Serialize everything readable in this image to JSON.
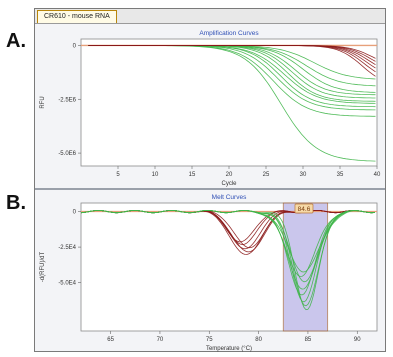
{
  "labels": {
    "panel_a": "A.",
    "panel_b": "B."
  },
  "window": {
    "tab_label": "CR610 - mouse RNA"
  },
  "chart_data": [
    {
      "type": "line",
      "title": "Amplification Curves",
      "xlabel": "Cycle",
      "ylabel": "RFU",
      "xlim": [
        0,
        40
      ],
      "ylim": [
        -5600000.0,
        300000.0
      ],
      "xticks": [
        5,
        10,
        15,
        20,
        25,
        30,
        35,
        40
      ],
      "yticks": [
        {
          "v": 0,
          "label": "0"
        },
        {
          "v": -2500000.0,
          "label": "-2.5E6"
        },
        {
          "v": -5000000.0,
          "label": "-5.0E6"
        }
      ],
      "baseline": 0,
      "colors": {
        "green": "#3fb549",
        "red": "#8b1a1a",
        "threshold": "#e7a07a"
      },
      "series": [
        {
          "group": "green",
          "plateau": -3300000.0,
          "mid": 26,
          "slope": 2.3
        },
        {
          "group": "green",
          "plateau": -3000000.0,
          "mid": 26.5,
          "slope": 2.2
        },
        {
          "group": "green",
          "plateau": -2850000.0,
          "mid": 27,
          "slope": 2.1
        },
        {
          "group": "green",
          "plateau": -2700000.0,
          "mid": 27.5,
          "slope": 2.2
        },
        {
          "group": "green",
          "plateau": -2600000.0,
          "mid": 28,
          "slope": 2.0
        },
        {
          "group": "green",
          "plateau": -2450000.0,
          "mid": 28.5,
          "slope": 2.0
        },
        {
          "group": "green",
          "plateau": -2300000.0,
          "mid": 29,
          "slope": 2.0
        },
        {
          "group": "green",
          "plateau": -2200000.0,
          "mid": 30,
          "slope": 2.1
        },
        {
          "group": "green",
          "plateau": -1900000.0,
          "mid": 30.5,
          "slope": 2.2
        },
        {
          "group": "green",
          "plateau": -1600000.0,
          "mid": 31.5,
          "slope": 2.3
        },
        {
          "group": "green",
          "plateau": -5400000.0,
          "mid": 27,
          "slope": 2.4
        },
        {
          "group": "red",
          "plateau": -1900000.0,
          "mid": 38,
          "slope": 1.6
        },
        {
          "group": "red",
          "plateau": -1700000.0,
          "mid": 38.3,
          "slope": 1.6
        },
        {
          "group": "red",
          "plateau": -1550000.0,
          "mid": 38.6,
          "slope": 1.6
        },
        {
          "group": "red",
          "plateau": -1400000.0,
          "mid": 38.9,
          "slope": 1.6
        },
        {
          "group": "red",
          "plateau": -1250000.0,
          "mid": 39.2,
          "slope": 1.6
        },
        {
          "group": "red",
          "plateau": -1100000.0,
          "mid": 39.5,
          "slope": 1.6
        }
      ]
    },
    {
      "type": "line",
      "title": "Melt Curves",
      "xlabel": "Temperature (°C)",
      "ylabel": "-d(RFU)/dT",
      "xlim": [
        62,
        92
      ],
      "ylim": [
        -84000.0,
        6000.0
      ],
      "xticks": [
        65,
        70,
        75,
        80,
        85,
        90
      ],
      "yticks": [
        {
          "v": 0,
          "label": "0"
        },
        {
          "v": -25000.0,
          "label": "-2.5E4"
        },
        {
          "v": -50000.0,
          "label": "-5.0E4"
        }
      ],
      "highlight": {
        "from": 82.5,
        "to": 87.0,
        "label": "84.6",
        "color": "#b9b4e6"
      },
      "colors": {
        "green": "#3fb549",
        "red": "#8b1a1a",
        "threshold": "#e7a07a"
      },
      "series": [
        {
          "group": "red",
          "center": 78.6,
          "depth": -27000.0,
          "width": 1.4
        },
        {
          "group": "red",
          "center": 78.4,
          "depth": -24000.0,
          "width": 1.3
        },
        {
          "group": "red",
          "center": 78.9,
          "depth": -29000.0,
          "width": 1.5
        },
        {
          "group": "red",
          "center": 78.2,
          "depth": -22000.0,
          "width": 1.3
        },
        {
          "group": "red",
          "center": 79.0,
          "depth": -26000.0,
          "width": 1.4
        },
        {
          "group": "red",
          "center": 78.7,
          "depth": -31000.0,
          "width": 1.5
        },
        {
          "group": "green",
          "center": 84.6,
          "depth": -63000.0,
          "width": 1.3
        },
        {
          "group": "green",
          "center": 84.4,
          "depth": -58000.0,
          "width": 1.4
        },
        {
          "group": "green",
          "center": 84.8,
          "depth": -66000.0,
          "width": 1.3
        },
        {
          "group": "green",
          "center": 84.5,
          "depth": -54000.0,
          "width": 1.5
        },
        {
          "group": "green",
          "center": 84.7,
          "depth": -49000.0,
          "width": 1.4
        },
        {
          "group": "green",
          "center": 84.3,
          "depth": -45000.0,
          "width": 1.5
        },
        {
          "group": "green",
          "center": 84.9,
          "depth": -69000.0,
          "width": 1.2
        },
        {
          "group": "green",
          "center": 84.6,
          "depth": -42000.0,
          "width": 1.6
        }
      ]
    }
  ]
}
